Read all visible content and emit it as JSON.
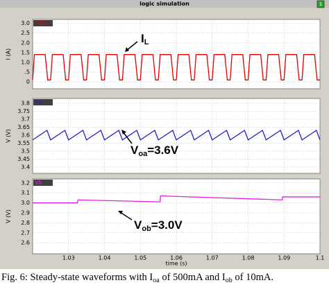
{
  "window_title": "logic simulation",
  "window_badge": "1",
  "chart_data": [
    {
      "type": "line",
      "tag": "I(L1)",
      "ylabel": "I (A)",
      "color": "#e00000",
      "x": [
        1.02,
        1.0205,
        1.0235,
        1.0242,
        1.025,
        1.0255,
        1.0285,
        1.0292,
        1.03,
        1.0305,
        1.0335,
        1.0342,
        1.035,
        1.0355,
        1.0385,
        1.0392,
        1.04,
        1.0405,
        1.0435,
        1.0442,
        1.045,
        1.0455,
        1.0485,
        1.0492,
        1.05,
        1.0505,
        1.0535,
        1.0542,
        1.055,
        1.0555,
        1.0585,
        1.0592,
        1.06,
        1.0605,
        1.0635,
        1.0642,
        1.065,
        1.0655,
        1.0685,
        1.0692,
        1.07,
        1.0705,
        1.0735,
        1.0742,
        1.075,
        1.0755,
        1.0785,
        1.0792,
        1.08,
        1.0805,
        1.0835,
        1.0842,
        1.085,
        1.0855,
        1.0885,
        1.0892,
        1.09,
        1.0905,
        1.0935,
        1.0942,
        1.095,
        1.0955,
        1.0985,
        1.0992,
        1.1
      ],
      "values": [
        0.1,
        1.4,
        1.4,
        0.1,
        0.1,
        1.4,
        1.4,
        0.1,
        0.1,
        1.4,
        1.4,
        0.1,
        0.1,
        1.4,
        1.4,
        0.1,
        0.1,
        1.4,
        1.4,
        0.1,
        0.1,
        1.4,
        1.4,
        0.1,
        0.1,
        1.4,
        1.4,
        0.1,
        0.1,
        1.4,
        1.4,
        0.1,
        0.1,
        1.4,
        1.4,
        0.1,
        0.1,
        1.4,
        1.4,
        0.1,
        0.1,
        1.4,
        1.4,
        0.1,
        0.1,
        1.4,
        1.4,
        0.1,
        0.1,
        1.4,
        1.4,
        0.1,
        0.1,
        1.4,
        1.4,
        0.1,
        0.1,
        1.4,
        1.4,
        0.1,
        0.1,
        1.4,
        1.4,
        0.1,
        0.1
      ],
      "xlim": [
        1.02,
        1.1
      ],
      "xticks": [
        1.03,
        1.04,
        1.05,
        1.06,
        1.07,
        1.08,
        1.09,
        1.1
      ],
      "ylim": [
        -0.35,
        3.2
      ],
      "yticks": [
        {
          "value": 3,
          "label": "3.0"
        },
        2.5,
        {
          "value": 2,
          "label": "2.0"
        },
        1.5,
        {
          "value": 1,
          "label": "1.0"
        },
        {
          "value": 0.5,
          "label": ".5"
        },
        0
      ],
      "grid": true,
      "annotation": [
        "I",
        "L"
      ]
    },
    {
      "type": "line",
      "tag": "Va",
      "ylabel": "V (V)",
      "color": "#2020c8",
      "x": [
        1.02,
        1.024,
        1.025,
        1.029,
        1.03,
        1.034,
        1.035,
        1.039,
        1.04,
        1.044,
        1.045,
        1.049,
        1.05,
        1.054,
        1.055,
        1.059,
        1.06,
        1.064,
        1.065,
        1.069,
        1.07,
        1.074,
        1.075,
        1.079,
        1.08,
        1.084,
        1.085,
        1.089,
        1.09,
        1.094,
        1.095,
        1.099,
        1.1
      ],
      "values": [
        3.57,
        3.63,
        3.57,
        3.63,
        3.57,
        3.63,
        3.57,
        3.63,
        3.57,
        3.63,
        3.57,
        3.63,
        3.57,
        3.63,
        3.57,
        3.63,
        3.57,
        3.63,
        3.57,
        3.63,
        3.57,
        3.63,
        3.57,
        3.63,
        3.57,
        3.63,
        3.57,
        3.63,
        3.57,
        3.63,
        3.57,
        3.63,
        3.57
      ],
      "xlim": [
        1.02,
        1.1
      ],
      "xticks": [
        1.03,
        1.04,
        1.05,
        1.06,
        1.07,
        1.08,
        1.09,
        1.1
      ],
      "ylim": [
        3.36,
        3.83
      ],
      "yticks": [
        3.8,
        3.75,
        3.7,
        3.65,
        3.6,
        3.55,
        3.5,
        3.45,
        3.4
      ],
      "grid": true,
      "annotation": [
        "V",
        "oa",
        "=3.6V"
      ]
    },
    {
      "type": "line",
      "tag": "Vb",
      "ylabel": "V (V)",
      "color": "#e020e0",
      "x": [
        1.02,
        1.0325,
        1.0326,
        1.0555,
        1.0556,
        1.0895,
        1.0896,
        1.1
      ],
      "values": [
        3.0,
        3.0,
        3.03,
        3.01,
        3.07,
        3.03,
        3.06,
        3.06
      ],
      "xlim": [
        1.02,
        1.1
      ],
      "xticks": [
        1.03,
        1.04,
        1.05,
        1.06,
        1.07,
        1.08,
        1.09,
        1.1
      ],
      "xlabel": "time (s)",
      "ylim": [
        2.49,
        3.24
      ],
      "yticks": [
        3.2,
        3.1,
        {
          "value": 3,
          "label": "3.0"
        },
        2.9,
        2.8,
        2.7,
        2.6
      ],
      "grid": true,
      "annotation": [
        "V",
        "ob",
        "=3.0V"
      ]
    }
  ],
  "caption": [
    "Fig. 6:  Steady-state waveforms with I",
    "oa",
    " of 500mA and I",
    "ob",
    " of 10mA."
  ]
}
